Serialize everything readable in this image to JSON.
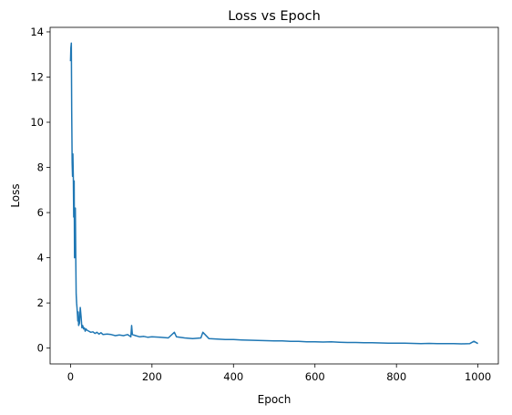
{
  "chart_data": {
    "type": "line",
    "title": "Loss vs Epoch",
    "xlabel": "Epoch",
    "ylabel": "Loss",
    "xlim": [
      -50,
      1050
    ],
    "ylim": [
      -0.7,
      14.2
    ],
    "xticks": [
      0,
      200,
      400,
      600,
      800,
      1000
    ],
    "yticks": [
      0,
      2,
      4,
      6,
      8,
      10,
      12,
      14
    ],
    "xtick_labels": [
      "0",
      "200",
      "400",
      "600",
      "800",
      "1000"
    ],
    "ytick_labels": [
      "0",
      "2",
      "4",
      "6",
      "8",
      "10",
      "12",
      "14"
    ],
    "grid": false,
    "legend": "none",
    "series": [
      {
        "color": "#1f77b4",
        "x": [
          0,
          1,
          2,
          3,
          4,
          5,
          6,
          7,
          8,
          9,
          10,
          11,
          12,
          13,
          14,
          15,
          16,
          17,
          18,
          19,
          20,
          22,
          24,
          26,
          28,
          30,
          32,
          34,
          36,
          38,
          40,
          45,
          50,
          55,
          60,
          65,
          70,
          75,
          80,
          90,
          100,
          110,
          120,
          130,
          140,
          148,
          150,
          152,
          160,
          170,
          180,
          190,
          200,
          220,
          240,
          255,
          260,
          280,
          300,
          320,
          325,
          340,
          360,
          380,
          400,
          420,
          440,
          460,
          480,
          500,
          520,
          540,
          560,
          580,
          600,
          620,
          640,
          660,
          680,
          700,
          720,
          740,
          760,
          780,
          800,
          820,
          840,
          860,
          880,
          900,
          920,
          940,
          960,
          980,
          990,
          1000
        ],
        "y": [
          12.7,
          13.3,
          13.5,
          10.5,
          8.2,
          7.6,
          8.6,
          7.5,
          5.8,
          7.4,
          4.0,
          5.7,
          6.2,
          3.9,
          2.4,
          2.0,
          1.8,
          1.5,
          1.2,
          1.6,
          1.0,
          1.1,
          1.8,
          1.4,
          0.9,
          1.0,
          0.85,
          0.9,
          0.75,
          0.85,
          0.8,
          0.75,
          0.7,
          0.72,
          0.65,
          0.7,
          0.62,
          0.68,
          0.6,
          0.62,
          0.6,
          0.55,
          0.58,
          0.55,
          0.6,
          0.5,
          1.0,
          0.6,
          0.55,
          0.5,
          0.52,
          0.48,
          0.5,
          0.48,
          0.45,
          0.7,
          0.5,
          0.45,
          0.42,
          0.45,
          0.7,
          0.42,
          0.4,
          0.38,
          0.38,
          0.36,
          0.35,
          0.34,
          0.33,
          0.32,
          0.32,
          0.3,
          0.3,
          0.28,
          0.28,
          0.27,
          0.28,
          0.26,
          0.25,
          0.25,
          0.24,
          0.24,
          0.23,
          0.22,
          0.22,
          0.22,
          0.21,
          0.2,
          0.21,
          0.2,
          0.2,
          0.2,
          0.19,
          0.2,
          0.3,
          0.2
        ]
      }
    ]
  }
}
